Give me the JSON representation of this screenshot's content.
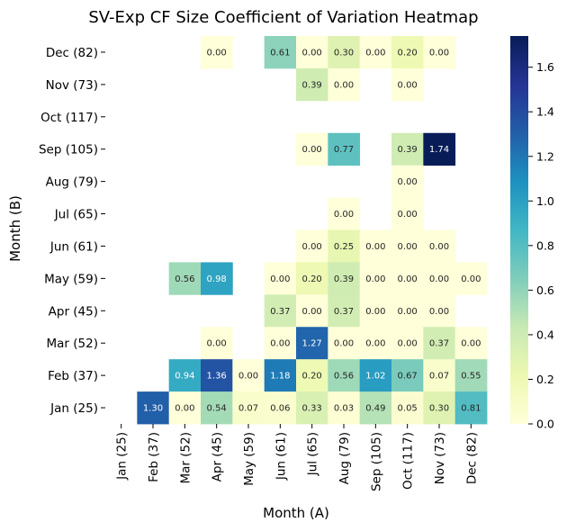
{
  "chart_data": {
    "type": "heatmap",
    "title": "SV-Exp CF Size Coefficient of Variation Heatmap",
    "xlabel": "Month (A)",
    "ylabel": "Month (B)",
    "x_categories": [
      "Jan (25)",
      "Feb (37)",
      "Mar (52)",
      "Apr (45)",
      "May (59)",
      "Jun (61)",
      "Jul (65)",
      "Aug (79)",
      "Sep (105)",
      "Oct (117)",
      "Nov (73)",
      "Dec (82)"
    ],
    "y_categories": [
      "Dec (82)",
      "Nov (73)",
      "Oct (117)",
      "Sep (105)",
      "Aug (79)",
      "Jul (65)",
      "Jun (61)",
      "May (59)",
      "Apr (45)",
      "Mar (52)",
      "Feb (37)",
      "Jan (25)"
    ],
    "values": [
      [
        null,
        null,
        null,
        0.0,
        null,
        0.61,
        0.0,
        0.3,
        0.0,
        0.2,
        0.0,
        null
      ],
      [
        null,
        null,
        null,
        null,
        null,
        null,
        0.39,
        0.0,
        null,
        0.0,
        null,
        null
      ],
      [
        null,
        null,
        null,
        null,
        null,
        null,
        null,
        null,
        null,
        null,
        null,
        null
      ],
      [
        null,
        null,
        null,
        null,
        null,
        null,
        0.0,
        0.77,
        null,
        0.39,
        1.74,
        null
      ],
      [
        null,
        null,
        null,
        null,
        null,
        null,
        null,
        null,
        null,
        0.0,
        null,
        null
      ],
      [
        null,
        null,
        null,
        null,
        null,
        null,
        null,
        0.0,
        null,
        0.0,
        null,
        null
      ],
      [
        null,
        null,
        null,
        null,
        null,
        null,
        0.0,
        0.25,
        0.0,
        0.0,
        0.0,
        null
      ],
      [
        null,
        null,
        0.56,
        0.98,
        null,
        0.0,
        0.2,
        0.39,
        0.0,
        0.0,
        0.0,
        0.0
      ],
      [
        null,
        null,
        null,
        null,
        null,
        0.37,
        0.0,
        0.37,
        0.0,
        0.0,
        0.0,
        null
      ],
      [
        null,
        null,
        null,
        0.0,
        null,
        0.0,
        1.27,
        0.0,
        0.0,
        0.0,
        0.37,
        0.0
      ],
      [
        null,
        null,
        0.94,
        1.36,
        0.0,
        1.18,
        0.2,
        0.56,
        1.02,
        0.67,
        0.07,
        0.55
      ],
      [
        null,
        1.3,
        0.0,
        0.54,
        0.07,
        0.06,
        0.33,
        0.03,
        0.49,
        0.05,
        0.3,
        0.81
      ]
    ],
    "vmin": 0.0,
    "vmax": 1.74,
    "colorbar_ticks": [
      "0.0",
      "0.2",
      "0.4",
      "0.6",
      "0.8",
      "1.0",
      "1.2",
      "1.4",
      "1.6"
    ],
    "colormap": "YlGnBu",
    "colors": {
      "annotation_dark_text": "#262626",
      "annotation_light_text": "#ffffff"
    }
  }
}
